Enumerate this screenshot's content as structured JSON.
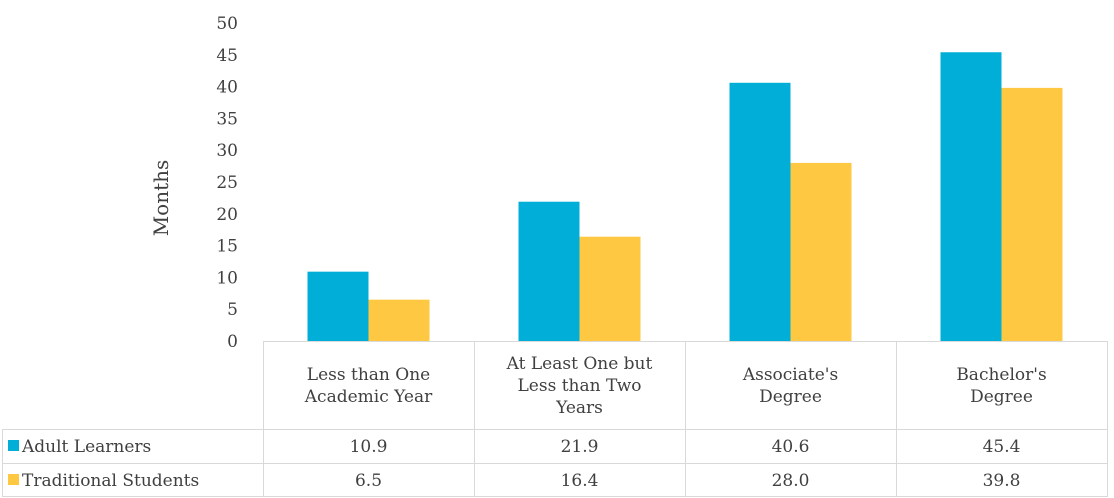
{
  "chart_data": {
    "type": "bar",
    "title": "",
    "xlabel": "",
    "ylabel": "Months",
    "ylim": [
      0,
      50
    ],
    "yticks": [
      0,
      5,
      10,
      15,
      20,
      25,
      30,
      35,
      40,
      45,
      50
    ],
    "grid": false,
    "legend": "data-table",
    "categories": [
      [
        "Less than One",
        "Academic Year"
      ],
      [
        "At Least One but",
        "Less than Two",
        "Years"
      ],
      [
        "Associate's",
        "Degree"
      ],
      [
        "Bachelor's",
        "Degree"
      ]
    ],
    "series": [
      {
        "name": "Adult Learners",
        "color": "#00AED7",
        "values": [
          10.9,
          21.9,
          40.6,
          45.4
        ],
        "labels": [
          "10.9",
          "21.9",
          "40.6",
          "45.4"
        ]
      },
      {
        "name": "Traditional Students",
        "color": "#FFC843",
        "values": [
          6.5,
          16.4,
          28.0,
          39.8
        ],
        "labels": [
          "6.5",
          "16.4",
          "28.0",
          "39.8"
        ]
      }
    ]
  }
}
